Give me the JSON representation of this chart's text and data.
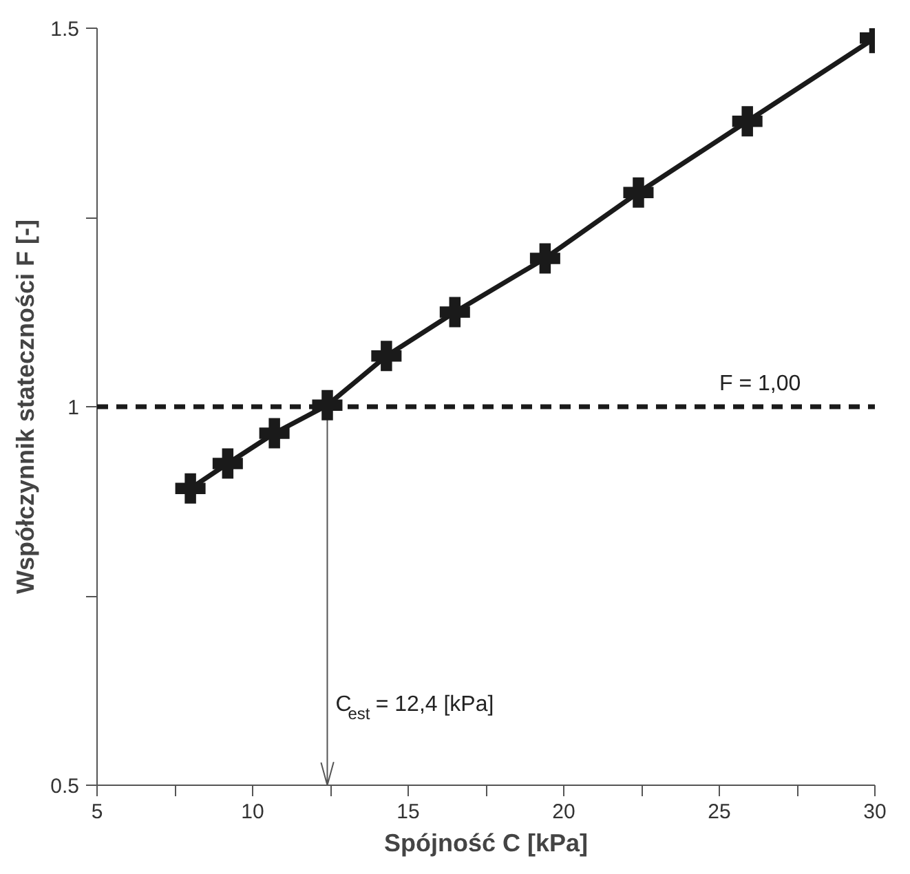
{
  "chart_data": {
    "type": "line",
    "xlabel": "Spójność C [kPa]",
    "ylabel": "Współczynnik stateczności F [-]",
    "x": [
      8.0,
      9.2,
      10.7,
      12.4,
      14.3,
      16.5,
      19.4,
      22.4,
      25.9,
      30.0
    ],
    "series": [
      {
        "color": "#1a1a1a",
        "values": [
          0.892,
          0.925,
          0.965,
          1.002,
          1.067,
          1.125,
          1.196,
          1.283,
          1.377,
          1.487
        ]
      }
    ],
    "marker": "cross",
    "line_style": "solid",
    "xlim": [
      5,
      30
    ],
    "ylim": [
      0.5,
      1.5
    ],
    "xticks": [
      5,
      {
        "value": 7.5,
        "label": null
      },
      10,
      {
        "value": 12.5,
        "label": null
      },
      15,
      {
        "value": 17.5,
        "label": null
      },
      20,
      {
        "value": 22.5,
        "label": null
      },
      25,
      {
        "value": 27.5,
        "label": null
      },
      30
    ],
    "yticks": [
      0.5,
      {
        "value": 0.75,
        "label": null
      },
      1,
      {
        "value": 1.25,
        "label": null
      },
      1.5
    ],
    "ref_lines": [
      {
        "axis": "y",
        "value": 1,
        "label": "F = 1,00",
        "color": "#1a1a1a",
        "line_style": "dashed"
      },
      {
        "axis": "x",
        "value": 12.4,
        "label": "C$_{est}$ = 12,4 [kPa]",
        "color": "#555555",
        "line_style": "solid"
      }
    ]
  }
}
